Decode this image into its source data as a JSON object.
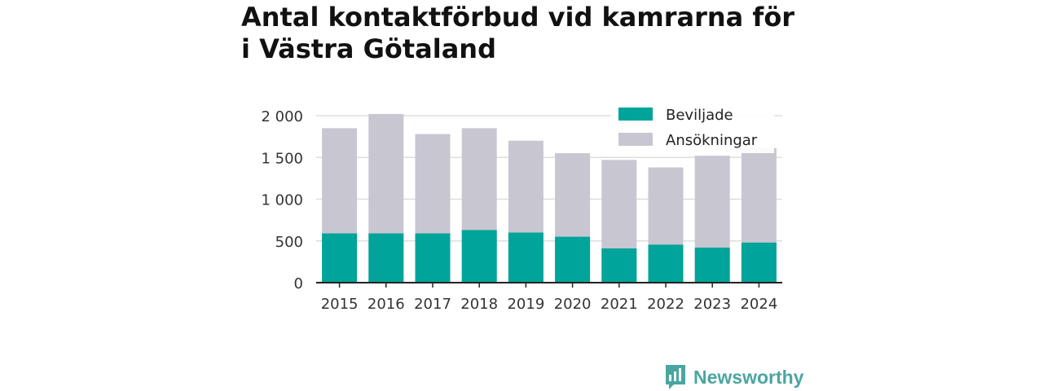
{
  "colors": {
    "granted": "#00a49a",
    "applications": "#c8c6d1",
    "grid": "#dddddd",
    "axis": "#222222",
    "brand": "#4aa6a0"
  },
  "brand": {
    "name": "Newsworthy",
    "logo_icon": "bar-chart-speech-bubble-icon"
  },
  "chart_data": {
    "type": "bar",
    "title": "Antal kontaktförbud vid kamrarna för i Västra Götaland",
    "xlabel": "",
    "ylabel": "",
    "categories": [
      "2015",
      "2016",
      "2017",
      "2018",
      "2019",
      "2020",
      "2021",
      "2022",
      "2023",
      "2024"
    ],
    "series": [
      {
        "name": "Beviljade",
        "values": [
          590,
          590,
          590,
          630,
          600,
          550,
          410,
          455,
          420,
          480
        ]
      },
      {
        "name": "Ansökningar",
        "values": [
          1850,
          2020,
          1780,
          1850,
          1700,
          1550,
          1470,
          1380,
          1520,
          1610
        ]
      }
    ],
    "ylim": [
      0,
      2000
    ],
    "yticks": [
      0,
      500,
      1000,
      1500,
      2000
    ],
    "ytick_labels": [
      "0",
      "500",
      "1 000",
      "1 500",
      "2 000"
    ],
    "grid": true,
    "legend_position": "top-right"
  }
}
